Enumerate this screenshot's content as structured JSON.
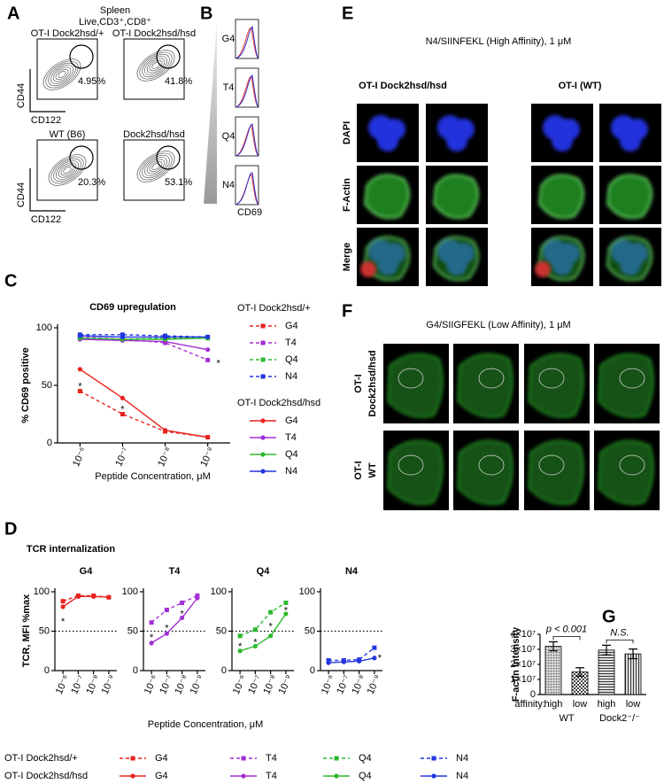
{
  "panels": {
    "A": {
      "letter": "A",
      "header": [
        "Spleen",
        "Live,CD3⁺,CD8⁺"
      ],
      "plots": [
        {
          "title": "OT-I Dock2hsd/+",
          "percent": "4.95%"
        },
        {
          "title": "OT-I Dock2hsd/hsd",
          "percent": "41.8%"
        },
        {
          "title": "WT (B6)",
          "percent": "20.3%"
        },
        {
          "title": "Dock2hsd/hsd",
          "percent": "53.1%"
        }
      ],
      "axes": [
        {
          "y": "CD44",
          "x": "CD122"
        },
        {
          "y": "CD44",
          "x": "CD122"
        }
      ]
    },
    "B": {
      "letter": "B",
      "rows": [
        "G4",
        "T4",
        "Q4",
        "N4"
      ],
      "x_label": "CD69"
    },
    "E": {
      "letter": "E",
      "title": "N4/SIINFEKL (High Affinity), 1 μM",
      "columns": [
        "OT-I Dock2hsd/hsd",
        "OT-I (WT)"
      ],
      "rows": [
        {
          "label": "DAPI",
          "color": "#2a2ae0"
        },
        {
          "label": "F-Actin",
          "color": "#22a822"
        },
        {
          "label": "Merge",
          "color": "#000000"
        }
      ]
    },
    "F": {
      "letter": "F",
      "title": "G4/SIIGFEKL (Low Affinity), 1 μM",
      "rows": [
        [
          "OT-I",
          "Dock2hsd/hsd"
        ],
        [
          "OT-I",
          "WT"
        ]
      ]
    },
    "C": {
      "letter": "C"
    },
    "D": {
      "letter": "D",
      "title": "TCR internalization",
      "y_label": "TCR, MFI %max",
      "x_label": "Peptide Concentration, μM",
      "legend": [
        {
          "name": "OT-I Dock2hsd/+",
          "dashed": true,
          "entries": [
            {
              "name": "G4",
              "color": "#e8231f"
            },
            {
              "name": "T4",
              "color": "#a32ed6"
            },
            {
              "name": "Q4",
              "color": "#2eb82e"
            },
            {
              "name": "N4",
              "color": "#2336e0"
            }
          ]
        },
        {
          "name": "OT-I Dock2hsd/hsd",
          "dashed": false,
          "entries": [
            {
              "name": "G4",
              "color": "#e8231f"
            },
            {
              "name": "T4",
              "color": "#a32ed6"
            },
            {
              "name": "Q4",
              "color": "#2eb82e"
            },
            {
              "name": "N4",
              "color": "#2336e0"
            }
          ]
        }
      ]
    },
    "G": {
      "letter": "G"
    }
  },
  "chart_data": [
    {
      "type": "line",
      "title": "CD69 upregulation",
      "y_label": "% CD69 positive",
      "x_label": "Peptide Concentration, μM",
      "categories": [
        "10⁻⁶",
        "10⁻⁷",
        "10⁻⁸",
        "10⁻⁹"
      ],
      "ylim": [
        0,
        100
      ],
      "yticks": [
        0,
        50,
        100
      ],
      "series_groups": [
        {
          "name": "OT-I Dock2hsd/+",
          "dashed": true,
          "series": [
            {
              "name": "G4",
              "color": "#e8231f",
              "values": [
                45,
                25,
                10,
                5
              ]
            },
            {
              "name": "T4",
              "color": "#a32ed6",
              "values": [
                92,
                90,
                87,
                72
              ]
            },
            {
              "name": "Q4",
              "color": "#2eb82e",
              "values": [
                91,
                90,
                91,
                91
              ]
            },
            {
              "name": "N4",
              "color": "#2336e0",
              "values": [
                94,
                94,
                93,
                92
              ]
            }
          ]
        },
        {
          "name": "OT-I Dock2hsd/hsd",
          "dashed": false,
          "series": [
            {
              "name": "G4",
              "color": "#e8231f",
              "values": [
                64,
                39,
                11,
                5
              ]
            },
            {
              "name": "T4",
              "color": "#a32ed6",
              "values": [
                90,
                89,
                88,
                81
              ]
            },
            {
              "name": "Q4",
              "color": "#2eb82e",
              "values": [
                91,
                90,
                90,
                91
              ]
            },
            {
              "name": "N4",
              "color": "#2336e0",
              "values": [
                93,
                92,
                92,
                92
              ]
            }
          ]
        }
      ],
      "annotations": [
        {
          "text": "*",
          "x": 0,
          "y": 52
        },
        {
          "text": "*",
          "x": 1,
          "y": 32
        },
        {
          "text": "*",
          "x": 3.25,
          "y": 72
        }
      ]
    },
    {
      "type": "line",
      "title": "G4",
      "categories": [
        "10⁻⁶",
        "10⁻⁷",
        "10⁻⁸",
        "10⁻⁹"
      ],
      "ylim": [
        0,
        100
      ],
      "yticks": [
        0,
        50,
        100
      ],
      "ref_line": 50,
      "series": [
        {
          "color": "#e8231f",
          "dashed": true,
          "values": [
            88,
            95,
            95,
            93
          ]
        },
        {
          "color": "#e8231f",
          "dashed": false,
          "values": [
            81,
            94,
            94,
            93
          ]
        }
      ],
      "annotations": [
        {
          "text": "*",
          "x": 0,
          "y": 66
        }
      ]
    },
    {
      "type": "line",
      "title": "T4",
      "categories": [
        "10⁻⁶",
        "10⁻⁷",
        "10⁻⁸",
        "10⁻⁹"
      ],
      "ylim": [
        0,
        100
      ],
      "yticks": [
        0,
        50,
        100
      ],
      "ref_line": 50,
      "series": [
        {
          "color": "#a32ed6",
          "dashed": true,
          "values": [
            61,
            77,
            86,
            95
          ]
        },
        {
          "color": "#a32ed6",
          "dashed": false,
          "values": [
            35,
            47,
            67,
            92
          ]
        }
      ],
      "annotations": [
        {
          "text": "*",
          "x": 0,
          "y": 46
        },
        {
          "text": "*",
          "x": 1,
          "y": 58
        },
        {
          "text": "*",
          "x": 2,
          "y": 76
        }
      ]
    },
    {
      "type": "line",
      "title": "Q4",
      "categories": [
        "10⁻⁶",
        "10⁻⁷",
        "10⁻⁸",
        "10⁻⁹"
      ],
      "ylim": [
        0,
        100
      ],
      "yticks": [
        0,
        50,
        100
      ],
      "ref_line": 50,
      "series": [
        {
          "color": "#2eb82e",
          "dashed": true,
          "values": [
            44,
            52,
            74,
            86
          ]
        },
        {
          "color": "#2eb82e",
          "dashed": false,
          "values": [
            25,
            31,
            44,
            72
          ]
        }
      ],
      "annotations": [
        {
          "text": "*",
          "x": 0,
          "y": 35
        },
        {
          "text": "*",
          "x": 1,
          "y": 40
        },
        {
          "text": "*",
          "x": 2,
          "y": 60
        },
        {
          "text": "*",
          "x": 3,
          "y": 80
        }
      ]
    },
    {
      "type": "line",
      "title": "N4",
      "categories": [
        "10⁻⁶",
        "10⁻⁷",
        "10⁻⁸",
        "10⁻⁹"
      ],
      "ylim": [
        0,
        100
      ],
      "yticks": [
        0,
        50,
        100
      ],
      "ref_line": 50,
      "series": [
        {
          "color": "#2336e0",
          "dashed": true,
          "values": [
            13,
            13,
            14,
            29
          ]
        },
        {
          "color": "#2336e0",
          "dashed": false,
          "values": [
            10,
            11,
            12,
            16
          ]
        }
      ],
      "annotations": [
        {
          "text": "*",
          "x": 3.35,
          "y": 20
        }
      ]
    },
    {
      "type": "bar",
      "y_label": "F-actin Intensity",
      "x_prefix": "affinity:",
      "categories": [
        "high",
        "low",
        "high",
        "low"
      ],
      "groups": [
        "WT",
        "Dock2⁻/⁻"
      ],
      "values": [
        32000000,
        15000000,
        29500000,
        27000000
      ],
      "errors": [
        3000000,
        2800000,
        3200000,
        3200000
      ],
      "ylim": [
        0,
        40000000
      ],
      "yticks": [
        0,
        {
          "value": 10000000,
          "label": "1×10⁷"
        },
        {
          "value": 20000000,
          "label": "2×10⁷"
        },
        {
          "value": 30000000,
          "label": "3×10⁷"
        },
        {
          "value": 40000000,
          "label": "4×10⁷"
        }
      ],
      "patterns": [
        "dots",
        "checker",
        "hlines",
        "vlines"
      ],
      "color": "#9a9a9a",
      "brackets": [
        {
          "text": "p < 0.001",
          "from": 0,
          "to": 1
        },
        {
          "text": "N.S.",
          "from": 2,
          "to": 3
        }
      ]
    }
  ]
}
